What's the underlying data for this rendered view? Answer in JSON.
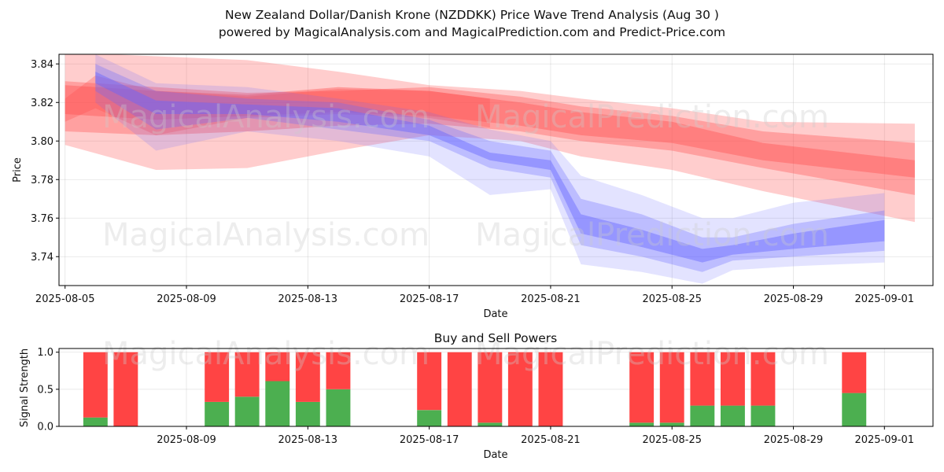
{
  "title_line1": "New Zealand Dollar/Danish Krone (NZDDKK) Price Wave Trend Analysis (Aug 30 )",
  "title_line2": "powered by MagicalAnalysis.com and MagicalPrediction.com and Predict-Price.com",
  "watermarks": [
    "MagicalAnalysis.com",
    "MagicalPrediction.com"
  ],
  "colors": {
    "red_band": "#ff4d4d",
    "blue_band": "#6666ff",
    "buy": "#4caf50",
    "sell": "#ff4444"
  },
  "chart_data": [
    {
      "type": "area",
      "title": "",
      "xlabel": "Date",
      "ylabel": "Price",
      "xlim": [
        "2025-08-05",
        "2025-09-02"
      ],
      "ylim": [
        3.725,
        3.845
      ],
      "x_ticks": [
        "2025-08-05",
        "2025-08-09",
        "2025-08-13",
        "2025-08-17",
        "2025-08-21",
        "2025-08-25",
        "2025-08-29",
        "2025-09-01"
      ],
      "y_ticks": [
        3.74,
        3.76,
        3.78,
        3.8,
        3.82,
        3.84
      ],
      "grid": true,
      "series": [
        {
          "color": "red",
          "bands": [
            {
              "x": [
                "2025-08-05",
                "2025-08-08",
                "2025-08-11",
                "2025-08-14",
                "2025-08-17",
                "2025-08-20",
                "2025-08-22",
                "2025-08-25",
                "2025-08-28",
                "2025-09-02"
              ],
              "upper": [
                3.846,
                3.844,
                3.842,
                3.836,
                3.829,
                3.826,
                3.822,
                3.817,
                3.81,
                3.809
              ],
              "lower": [
                3.798,
                3.785,
                3.786,
                3.795,
                3.803,
                3.8,
                3.792,
                3.785,
                3.774,
                3.758
              ],
              "opacity": 0.28
            },
            {
              "x": [
                "2025-08-05",
                "2025-08-08",
                "2025-08-11",
                "2025-08-14",
                "2025-08-17",
                "2025-08-20",
                "2025-08-22",
                "2025-08-25",
                "2025-08-28",
                "2025-09-02"
              ],
              "upper": [
                3.831,
                3.828,
                3.825,
                3.826,
                3.828,
                3.823,
                3.818,
                3.813,
                3.805,
                3.799
              ],
              "lower": [
                3.805,
                3.803,
                3.805,
                3.808,
                3.809,
                3.805,
                3.8,
                3.795,
                3.786,
                3.772
              ],
              "opacity": 0.35
            },
            {
              "x": [
                "2025-08-05",
                "2025-08-08",
                "2025-08-11",
                "2025-08-14",
                "2025-08-17",
                "2025-08-20",
                "2025-08-22",
                "2025-08-25",
                "2025-08-28",
                "2025-09-02"
              ],
              "upper": [
                3.829,
                3.826,
                3.824,
                3.828,
                3.826,
                3.82,
                3.815,
                3.81,
                3.799,
                3.79
              ],
              "lower": [
                3.814,
                3.811,
                3.813,
                3.815,
                3.813,
                3.808,
                3.803,
                3.799,
                3.79,
                3.781
              ],
              "opacity": 0.4
            },
            {
              "x": [
                "2025-08-05",
                "2025-08-06",
                "2025-08-08",
                "2025-08-11",
                "2025-08-14",
                "2025-08-17",
                "2025-08-19"
              ],
              "upper": [
                3.822,
                3.834,
                3.826,
                3.823,
                3.827,
                3.826,
                3.822
              ],
              "lower": [
                3.81,
                3.817,
                3.803,
                3.812,
                3.814,
                3.812,
                3.807
              ],
              "opacity": 0.3
            }
          ]
        },
        {
          "color": "blue",
          "bands": [
            {
              "x": [
                "2025-08-06",
                "2025-08-08",
                "2025-08-11",
                "2025-08-14",
                "2025-08-17",
                "2025-08-19",
                "2025-08-21",
                "2025-08-22",
                "2025-08-24",
                "2025-08-26",
                "2025-08-27",
                "2025-08-29",
                "2025-09-01"
              ],
              "upper": [
                3.845,
                3.83,
                3.828,
                3.822,
                3.815,
                3.806,
                3.8,
                3.782,
                3.772,
                3.76,
                3.76,
                3.768,
                3.773
              ],
              "lower": [
                3.82,
                3.795,
                3.805,
                3.8,
                3.792,
                3.772,
                3.775,
                3.736,
                3.732,
                3.726,
                3.733,
                3.735,
                3.737
              ],
              "opacity": 0.18
            },
            {
              "x": [
                "2025-08-06",
                "2025-08-08",
                "2025-08-11",
                "2025-08-14",
                "2025-08-17",
                "2025-08-19",
                "2025-08-21",
                "2025-08-22",
                "2025-08-24",
                "2025-08-26",
                "2025-08-27",
                "2025-08-29",
                "2025-09-01"
              ],
              "upper": [
                3.84,
                3.826,
                3.822,
                3.82,
                3.811,
                3.8,
                3.795,
                3.77,
                3.762,
                3.75,
                3.75,
                3.757,
                3.764
              ],
              "lower": [
                3.826,
                3.806,
                3.812,
                3.806,
                3.8,
                3.786,
                3.781,
                3.746,
                3.74,
                3.732,
                3.738,
                3.74,
                3.743
              ],
              "opacity": 0.3
            },
            {
              "x": [
                "2025-08-06",
                "2025-08-08",
                "2025-08-11",
                "2025-08-14",
                "2025-08-17",
                "2025-08-19",
                "2025-08-21",
                "2025-08-22",
                "2025-08-24",
                "2025-08-26",
                "2025-08-27",
                "2025-08-29",
                "2025-09-01"
              ],
              "upper": [
                3.836,
                3.821,
                3.819,
                3.817,
                3.808,
                3.794,
                3.79,
                3.762,
                3.754,
                3.744,
                3.746,
                3.752,
                3.759
              ],
              "lower": [
                3.83,
                3.814,
                3.814,
                3.81,
                3.803,
                3.79,
                3.785,
                3.752,
                3.745,
                3.737,
                3.741,
                3.744,
                3.748
              ],
              "opacity": 0.45
            }
          ]
        }
      ]
    },
    {
      "type": "bar",
      "title": "Buy and Sell Powers",
      "xlabel": "Date",
      "ylabel": "Signal Strength",
      "ylim": [
        0,
        1.05
      ],
      "y_ticks": [
        0.0,
        0.5,
        1.0
      ],
      "x_ticks": [
        "2025-08-09",
        "2025-08-13",
        "2025-08-17",
        "2025-08-21",
        "2025-08-25",
        "2025-08-29",
        "2025-09-01"
      ],
      "categories": [
        "2025-08-06",
        "2025-08-07",
        "2025-08-10",
        "2025-08-11",
        "2025-08-12",
        "2025-08-13",
        "2025-08-14",
        "2025-08-17",
        "2025-08-18",
        "2025-08-19",
        "2025-08-20",
        "2025-08-21",
        "2025-08-24",
        "2025-08-25",
        "2025-08-26",
        "2025-08-27",
        "2025-08-28",
        "2025-08-31"
      ],
      "series": [
        {
          "name": "",
          "values": [
            0.12,
            0.0,
            0.33,
            0.4,
            0.61,
            0.33,
            0.5,
            0.22,
            0.0,
            0.05,
            0.0,
            0.0,
            0.05,
            0.05,
            0.28,
            0.28,
            0.28,
            0.45
          ]
        },
        {
          "name": "",
          "values": [
            0.88,
            1.0,
            0.67,
            0.6,
            0.39,
            0.67,
            0.5,
            0.78,
            1.0,
            0.95,
            1.0,
            1.0,
            0.95,
            0.95,
            0.72,
            0.72,
            0.72,
            0.55
          ]
        }
      ]
    }
  ]
}
